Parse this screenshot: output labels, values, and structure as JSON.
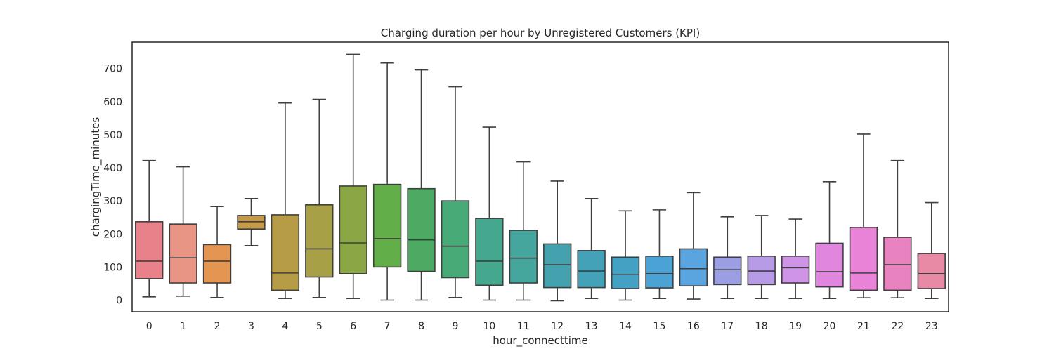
{
  "chart_data": {
    "type": "boxplot",
    "title": "Charging duration per hour by Unregistered Customers (KPI)",
    "xlabel": "hour_connecttime",
    "ylabel": "chargingTime_minutes",
    "ylim": [
      -35,
      780
    ],
    "yticks": [
      0,
      100,
      200,
      300,
      400,
      500,
      600,
      700
    ],
    "grid": false,
    "categories": [
      "0",
      "1",
      "2",
      "3",
      "4",
      "5",
      "6",
      "7",
      "8",
      "9",
      "10",
      "11",
      "12",
      "13",
      "14",
      "15",
      "16",
      "17",
      "18",
      "19",
      "20",
      "21",
      "22",
      "23"
    ],
    "colors": [
      "#e8818a",
      "#e89585",
      "#e49552",
      "#c59b49",
      "#b79c48",
      "#a8a046",
      "#8aa645",
      "#62ae48",
      "#4caa62",
      "#48aa76",
      "#45a88e",
      "#45a69d",
      "#43a2ad",
      "#44a2b8",
      "#43a2c4",
      "#4aa3d4",
      "#5aa5df",
      "#9b9ee3",
      "#b79be6",
      "#cf94e5",
      "#e186de",
      "#e983d8",
      "#e883c0",
      "#e889a6"
    ],
    "boxes": [
      {
        "whislo": 10,
        "q1": 65,
        "med": 118,
        "q3": 237,
        "whishi": 422
      },
      {
        "whislo": 12,
        "q1": 52,
        "med": 128,
        "q3": 230,
        "whishi": 403
      },
      {
        "whislo": 8,
        "q1": 52,
        "med": 118,
        "q3": 168,
        "whishi": 283
      },
      {
        "whislo": 165,
        "q1": 215,
        "med": 237,
        "q3": 256,
        "whishi": 307
      },
      {
        "whislo": 5,
        "q1": 30,
        "med": 82,
        "q3": 258,
        "whishi": 596
      },
      {
        "whislo": 8,
        "q1": 70,
        "med": 155,
        "q3": 288,
        "whishi": 607
      },
      {
        "whislo": 5,
        "q1": 80,
        "med": 173,
        "q3": 345,
        "whishi": 743
      },
      {
        "whislo": 0,
        "q1": 100,
        "med": 186,
        "q3": 350,
        "whishi": 717
      },
      {
        "whislo": 0,
        "q1": 87,
        "med": 182,
        "q3": 337,
        "whishi": 696
      },
      {
        "whislo": 8,
        "q1": 68,
        "med": 163,
        "q3": 300,
        "whishi": 645
      },
      {
        "whislo": 0,
        "q1": 45,
        "med": 118,
        "q3": 247,
        "whishi": 523
      },
      {
        "whislo": 0,
        "q1": 52,
        "med": 127,
        "q3": 211,
        "whishi": 418
      },
      {
        "whislo": -2,
        "q1": 38,
        "med": 107,
        "q3": 170,
        "whishi": 360
      },
      {
        "whislo": 5,
        "q1": 38,
        "med": 88,
        "q3": 150,
        "whishi": 307
      },
      {
        "whislo": 0,
        "q1": 35,
        "med": 78,
        "q3": 130,
        "whishi": 270
      },
      {
        "whislo": 5,
        "q1": 37,
        "med": 80,
        "q3": 133,
        "whishi": 273
      },
      {
        "whislo": 3,
        "q1": 43,
        "med": 95,
        "q3": 155,
        "whishi": 325
      },
      {
        "whislo": 5,
        "q1": 47,
        "med": 92,
        "q3": 130,
        "whishi": 252
      },
      {
        "whislo": 5,
        "q1": 47,
        "med": 88,
        "q3": 133,
        "whishi": 256
      },
      {
        "whislo": 5,
        "q1": 52,
        "med": 98,
        "q3": 133,
        "whishi": 245
      },
      {
        "whislo": 5,
        "q1": 40,
        "med": 86,
        "q3": 172,
        "whishi": 358
      },
      {
        "whislo": 7,
        "q1": 30,
        "med": 82,
        "q3": 220,
        "whishi": 502
      },
      {
        "whislo": 7,
        "q1": 30,
        "med": 107,
        "q3": 190,
        "whishi": 422
      },
      {
        "whislo": 5,
        "q1": 35,
        "med": 80,
        "q3": 141,
        "whishi": 295
      }
    ]
  }
}
